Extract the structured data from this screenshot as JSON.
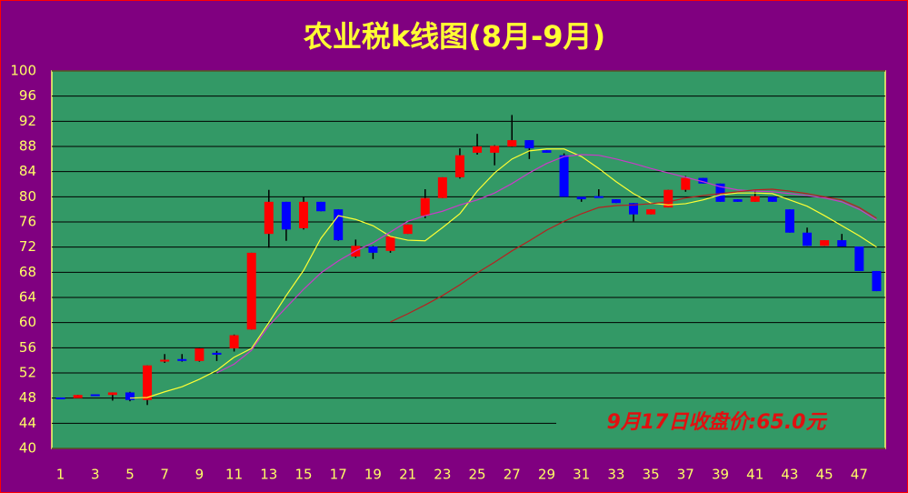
{
  "chart_data": {
    "type": "candlestick",
    "title": "农业税k线图(8月-9月)",
    "categories": [
      "1",
      null,
      "3",
      null,
      "5",
      null,
      "7",
      null,
      "9",
      null,
      "11",
      null,
      "13",
      null,
      "15",
      null,
      "17",
      null,
      "19",
      null,
      "21",
      null,
      "23",
      null,
      "25",
      null,
      "27",
      null,
      "29",
      null,
      "31",
      null,
      "33",
      null,
      "35",
      null,
      "37",
      null,
      "39",
      null,
      "41",
      null,
      "43",
      null,
      "45",
      null,
      "47",
      null
    ],
    "open": [
      48.1,
      48.0,
      48.6,
      48.5,
      48.9,
      47.7,
      53.8,
      54.2,
      53.9,
      55.2,
      55.9,
      58.9,
      74.1,
      79.2,
      75.0,
      79.2,
      78.0,
      70.5,
      72.1,
      71.4,
      74.1,
      77.0,
      79.8,
      83.1,
      87.0,
      87.0,
      88.0,
      89.0,
      87.4,
      86.6,
      80.0,
      80.1,
      79.6,
      79.0,
      77.2,
      78.3,
      81.1,
      83.0,
      82.1,
      79.6,
      79.2,
      80.0,
      78.0,
      74.3,
      72.2,
      73.1,
      72.1,
      68.2
    ],
    "high": [
      48.1,
      48.5,
      48.6,
      48.9,
      49.0,
      53.2,
      55.0,
      55.0,
      56.0,
      55.5,
      58.1,
      71.1,
      81.1,
      79.2,
      80.0,
      79.2,
      78.0,
      73.2,
      72.2,
      73.8,
      75.6,
      81.2,
      83.1,
      87.7,
      90.0,
      88.2,
      93.0,
      89.0,
      87.4,
      86.9,
      80.0,
      81.2,
      79.6,
      79.0,
      78.0,
      81.1,
      83.3,
      83.0,
      82.1,
      79.6,
      81.0,
      80.0,
      78.0,
      75.1,
      73.1,
      74.1,
      72.1,
      68.2
    ],
    "low": [
      48.0,
      48.0,
      48.4,
      47.6,
      47.5,
      46.9,
      53.6,
      53.8,
      53.8,
      53.9,
      55.4,
      58.9,
      71.9,
      73.0,
      74.8,
      77.7,
      73.0,
      70.3,
      70.1,
      71.1,
      74.1,
      76.6,
      79.8,
      82.9,
      86.7,
      85.0,
      87.9,
      86.0,
      87.0,
      80.0,
      79.2,
      80.0,
      79.0,
      76.1,
      77.2,
      78.3,
      80.8,
      82.1,
      79.2,
      79.2,
      79.2,
      79.2,
      74.3,
      72.2,
      72.2,
      72.1,
      68.2,
      65.0
    ],
    "close": [
      48.0,
      48.5,
      48.4,
      48.9,
      47.7,
      53.2,
      54.1,
      54.0,
      55.9,
      54.9,
      58.0,
      71.1,
      79.2,
      74.8,
      79.2,
      77.7,
      73.1,
      72.2,
      71.1,
      73.7,
      75.6,
      79.8,
      83.1,
      86.6,
      88.0,
      88.1,
      89.0,
      87.7,
      87.0,
      80.0,
      79.6,
      80.0,
      79.0,
      77.2,
      78.0,
      81.1,
      83.0,
      82.1,
      79.2,
      79.2,
      80.1,
      79.2,
      74.3,
      72.2,
      73.1,
      72.1,
      68.2,
      65.0
    ],
    "up_color": "#ff0000",
    "down_color": "#0000ff",
    "wick_color": "#000000",
    "lines": [
      {
        "color": "#ffff33",
        "values": [
          null,
          null,
          null,
          null,
          48,
          48.1,
          49,
          49.8,
          51,
          52.4,
          54.5,
          55.9,
          60,
          64.3,
          68.3,
          73.4,
          77,
          76.4,
          75.4,
          73.7,
          73.1,
          73,
          75.1,
          77.3,
          80.9,
          83.8,
          86,
          87.3,
          87.6,
          87.6,
          86.4,
          84.5,
          82.4,
          80.5,
          79,
          78.7,
          78.9,
          79.5,
          80.3,
          80.6,
          80.6,
          80.5,
          79.5,
          78.5,
          77,
          75.4,
          73.8,
          72
        ]
      },
      {
        "color": "#c83cc8",
        "values": [
          null,
          null,
          null,
          null,
          null,
          null,
          null,
          null,
          null,
          52,
          53.4,
          55.6,
          59.5,
          62.4,
          65.3,
          67.9,
          69.8,
          71.4,
          72.7,
          74.4,
          76.1,
          77,
          77.7,
          78.7,
          79.5,
          80.6,
          82.1,
          83.8,
          85.3,
          86.4,
          86.7,
          86.6,
          86,
          85.3,
          84.5,
          83.8,
          83.1,
          82.4,
          81.6,
          81.1,
          80.9,
          80.8,
          80.5,
          80.2,
          79.8,
          79.2,
          78,
          76.3
        ]
      },
      {
        "color": "#b82020",
        "values": [
          null,
          null,
          null,
          null,
          null,
          null,
          null,
          null,
          null,
          null,
          null,
          null,
          null,
          null,
          null,
          null,
          null,
          null,
          null,
          60.1,
          61.4,
          62.8,
          64.3,
          66,
          67.9,
          69.6,
          71.4,
          73,
          74.7,
          76.1,
          77.3,
          78.3,
          78.6,
          78.7,
          78.9,
          79.2,
          79.8,
          80.2,
          80.5,
          80.8,
          81.1,
          81.2,
          80.9,
          80.5,
          80,
          79.5,
          78.3,
          76.6
        ]
      }
    ],
    "annotation": "9月17日收盘价:65.0元",
    "ylim": [
      40,
      100
    ],
    "yticks": [
      40,
      44,
      48,
      52,
      56,
      60,
      64,
      68,
      72,
      76,
      80,
      84,
      88,
      92,
      96,
      100
    ],
    "grid": true
  }
}
